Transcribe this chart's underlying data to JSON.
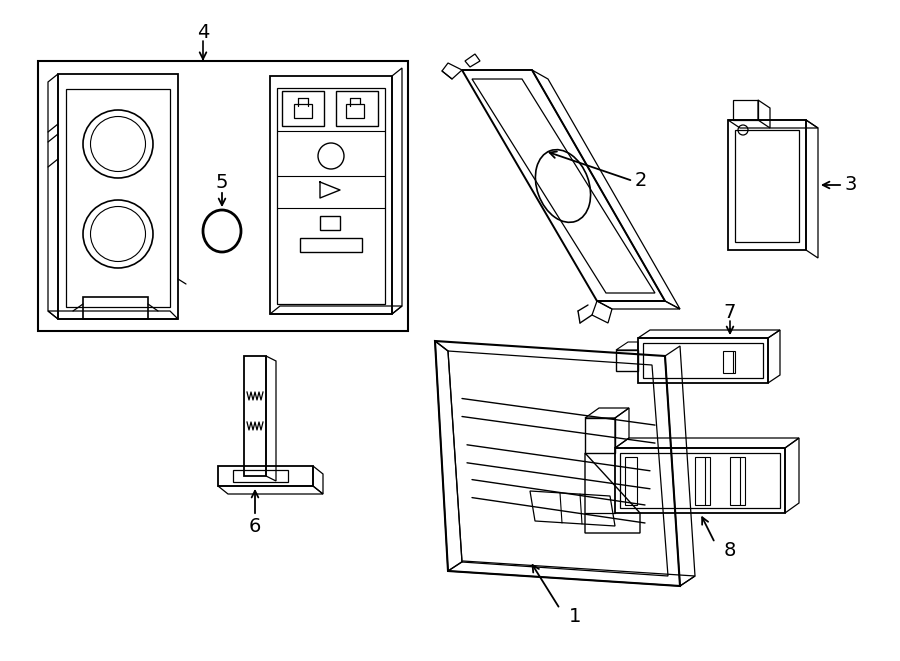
{
  "background_color": "#ffffff",
  "line_color": "#000000",
  "label_fontsize": 14
}
